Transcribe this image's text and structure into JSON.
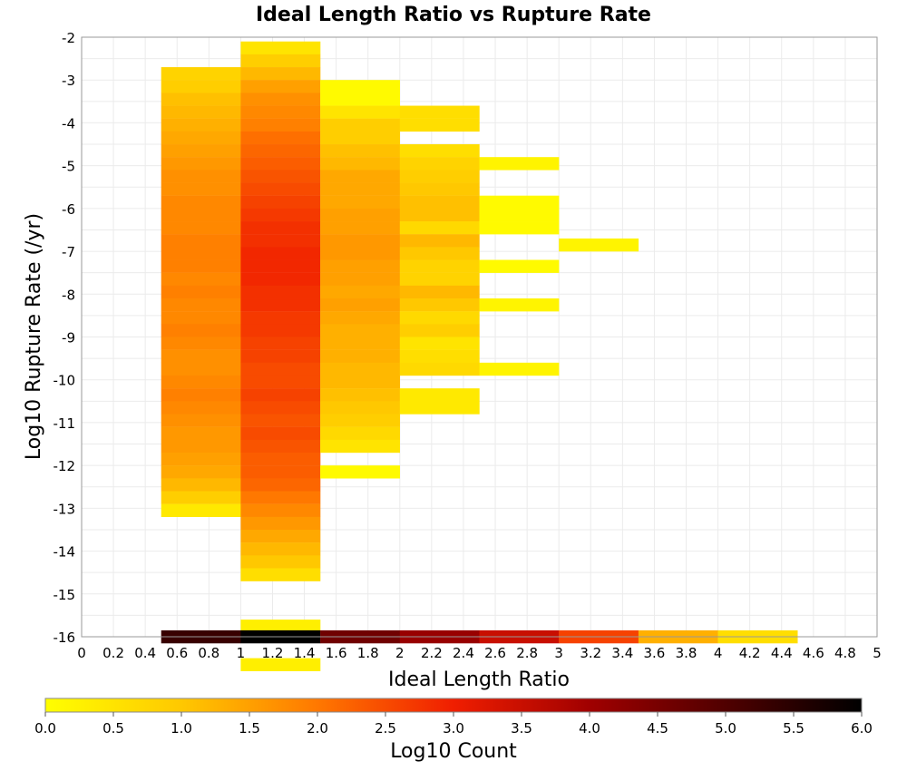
{
  "chart_data": {
    "type": "heatmap",
    "title": "Ideal Length Ratio vs Rupture Rate",
    "xlabel": "Ideal Length Ratio",
    "ylabel": "Log10 Rupture Rate (/yr)",
    "xlim": [
      0,
      5
    ],
    "ylim": [
      -16,
      -2
    ],
    "grid": true,
    "x_tick_labels": [
      "0",
      "0.2",
      "0.4",
      "0.6",
      "0.8",
      "1",
      "1.2",
      "1.4",
      "1.6",
      "1.8",
      "2",
      "2.2",
      "2.4",
      "2.6",
      "2.8",
      "3",
      "3.2",
      "3.4",
      "3.6",
      "3.8",
      "4",
      "4.2",
      "4.4",
      "4.6",
      "4.8",
      "5"
    ],
    "y_tick_labels": [
      "-2",
      "-3",
      "-4",
      "-5",
      "-6",
      "-7",
      "-8",
      "-9",
      "-10",
      "-11",
      "-12",
      "-13",
      "-14",
      "-15",
      "-16"
    ],
    "x_bin_width": 0.5,
    "y_bin_height": 0.3,
    "value_label": "Log10 Count",
    "color_scale": {
      "min": 0.0,
      "max": 6.0,
      "tick_labels": [
        "0.0",
        "0.5",
        "1.0",
        "1.5",
        "2.0",
        "2.5",
        "3.0",
        "3.5",
        "4.0",
        "4.5",
        "5.0",
        "5.5",
        "6.0"
      ],
      "colors": [
        {
          "v": 0.0,
          "color": "#ffff00"
        },
        {
          "v": 1.0,
          "color": "#ffc800"
        },
        {
          "v": 2.0,
          "color": "#ff7800"
        },
        {
          "v": 3.0,
          "color": "#f01e00"
        },
        {
          "v": 4.0,
          "color": "#a00000"
        },
        {
          "v": 5.0,
          "color": "#500000"
        },
        {
          "v": 6.0,
          "color": "#000000"
        }
      ]
    },
    "columns": [
      {
        "x_start": 0.5,
        "y_top": -2.7,
        "values": [
          0.8,
          0.9,
          1.1,
          1.2,
          1.3,
          1.4,
          1.5,
          1.6,
          1.7,
          1.7,
          1.8,
          1.8,
          1.8,
          1.9,
          1.9,
          1.9,
          1.8,
          1.9,
          1.8,
          1.8,
          1.9,
          1.8,
          1.7,
          1.7,
          1.8,
          1.9,
          1.8,
          1.7,
          1.6,
          1.6,
          1.5,
          1.4,
          1.2,
          0.9,
          0.4
        ]
      },
      {
        "x_start": 1.0,
        "y_top": -2.1,
        "values": [
          0.5,
          0.9,
          1.2,
          1.5,
          1.7,
          1.8,
          1.9,
          2.1,
          2.2,
          2.3,
          2.4,
          2.5,
          2.6,
          2.7,
          2.8,
          2.8,
          2.9,
          2.9,
          2.9,
          2.8,
          2.8,
          2.7,
          2.7,
          2.6,
          2.6,
          2.5,
          2.5,
          2.6,
          2.5,
          2.4,
          2.5,
          2.4,
          2.3,
          2.3,
          2.2,
          2.0,
          1.8,
          1.6,
          1.4,
          1.2,
          1.0,
          0.6,
          null,
          null,
          null,
          0.3,
          null,
          null,
          0.3
        ]
      },
      {
        "x_start": 1.5,
        "y_top": -3.0,
        "values": [
          0.1,
          0.1,
          0.5,
          0.9,
          0.9,
          1.1,
          1.2,
          1.4,
          1.4,
          1.4,
          1.5,
          1.5,
          1.6,
          1.6,
          1.5,
          1.5,
          1.4,
          1.5,
          1.4,
          1.3,
          1.3,
          1.3,
          1.2,
          1.2,
          1.1,
          1.0,
          0.9,
          0.7,
          0.5,
          null,
          0.1
        ]
      },
      {
        "x_start": 2.0,
        "y_top": -3.6,
        "values": [
          0.6,
          0.6,
          null,
          0.6,
          0.8,
          0.9,
          1.0,
          1.1,
          1.1,
          0.7,
          1.2,
          1.0,
          0.8,
          0.8,
          1.2,
          1.0,
          0.7,
          0.9,
          0.5,
          0.6,
          0.7,
          null,
          0.4,
          0.4
        ]
      },
      {
        "x_start": 2.5,
        "y_top": -4.8,
        "values": [
          0.2,
          null,
          null,
          0.1,
          0.1,
          0.1,
          null,
          null,
          0.1,
          null,
          null,
          0.2,
          null,
          null,
          null,
          null,
          0.2
        ]
      },
      {
        "x_start": 3.0,
        "y_top": -6.7,
        "values": [
          0.2
        ]
      },
      {
        "x_start": 0.5,
        "y_top": -15.85,
        "values": [
          5.3
        ]
      },
      {
        "x_start": 1.0,
        "y_top": -15.85,
        "values": [
          6.0
        ]
      },
      {
        "x_start": 1.5,
        "y_top": -15.85,
        "values": [
          4.6
        ]
      },
      {
        "x_start": 2.0,
        "y_top": -15.85,
        "values": [
          4.1
        ]
      },
      {
        "x_start": 2.5,
        "y_top": -15.85,
        "values": [
          3.5
        ]
      },
      {
        "x_start": 3.0,
        "y_top": -15.85,
        "values": [
          2.6
        ]
      },
      {
        "x_start": 3.5,
        "y_top": -15.85,
        "values": [
          1.3
        ]
      },
      {
        "x_start": 4.0,
        "y_top": -15.85,
        "values": [
          0.6
        ]
      }
    ]
  }
}
